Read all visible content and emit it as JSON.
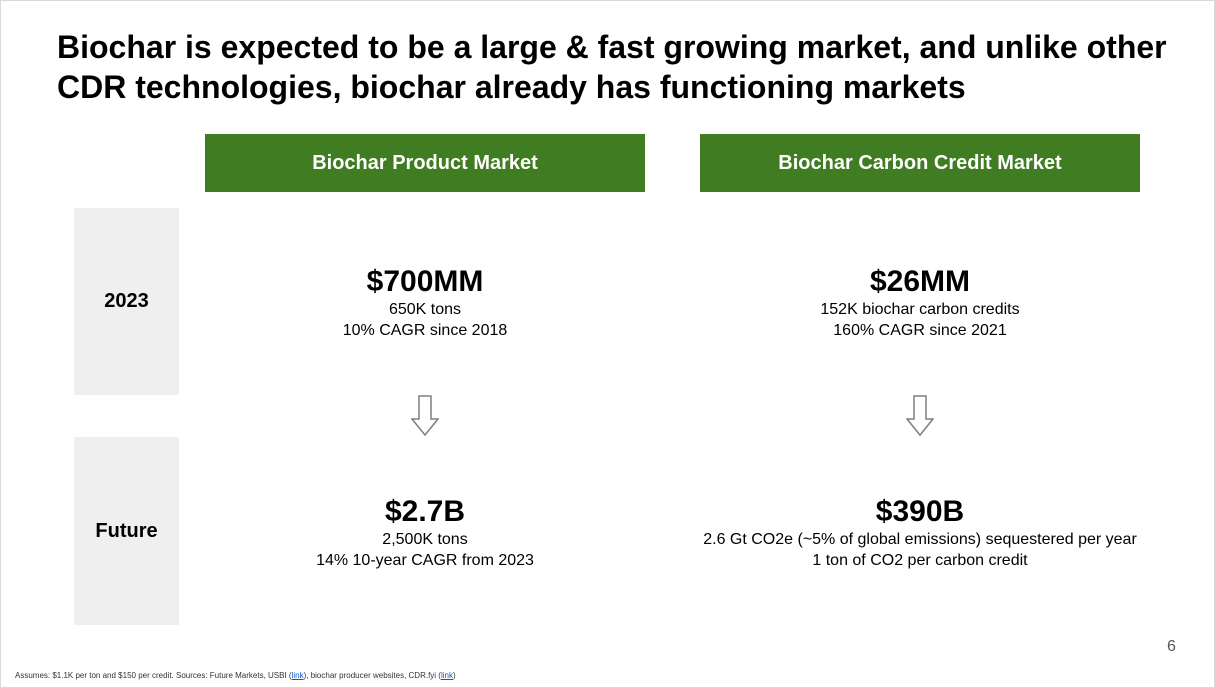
{
  "slide": {
    "title": "Biochar is expected to be a large & fast growing market, and unlike other CDR technologies, biochar already has functioning markets",
    "columns": {
      "left": "Biochar Product Market",
      "right": "Biochar Carbon Credit Market"
    },
    "rows": {
      "current": "2023",
      "future": "Future"
    },
    "product_2023": {
      "value": "$700MM",
      "line1": "650K tons",
      "line2": "10% CAGR since 2018"
    },
    "credit_2023": {
      "value": "$26MM",
      "line1": "152K biochar carbon credits",
      "line2": "160% CAGR since 2021"
    },
    "product_future": {
      "value": "$2.7B",
      "line1": "2,500K tons",
      "line2": "14% 10-year CAGR from 2023"
    },
    "credit_future": {
      "value": "$390B",
      "line1": "2.6 Gt CO2e (~5% of global emissions) sequestered per year",
      "line2": "1 ton of CO2 per carbon credit"
    },
    "page_number": "6",
    "footnote": {
      "part1": "Assumes: $1.1K per ton and $150 per credit.  Sources: Future Markets, USBI (",
      "link1": "link",
      "part2": "), biochar producer websites, CDR.fyi (",
      "link2": "link",
      "part3": ")"
    },
    "colors": {
      "header_green": "#3f7c22",
      "row_label_bg": "#efefef"
    },
    "icons": [
      "down-arrow-icon"
    ]
  }
}
